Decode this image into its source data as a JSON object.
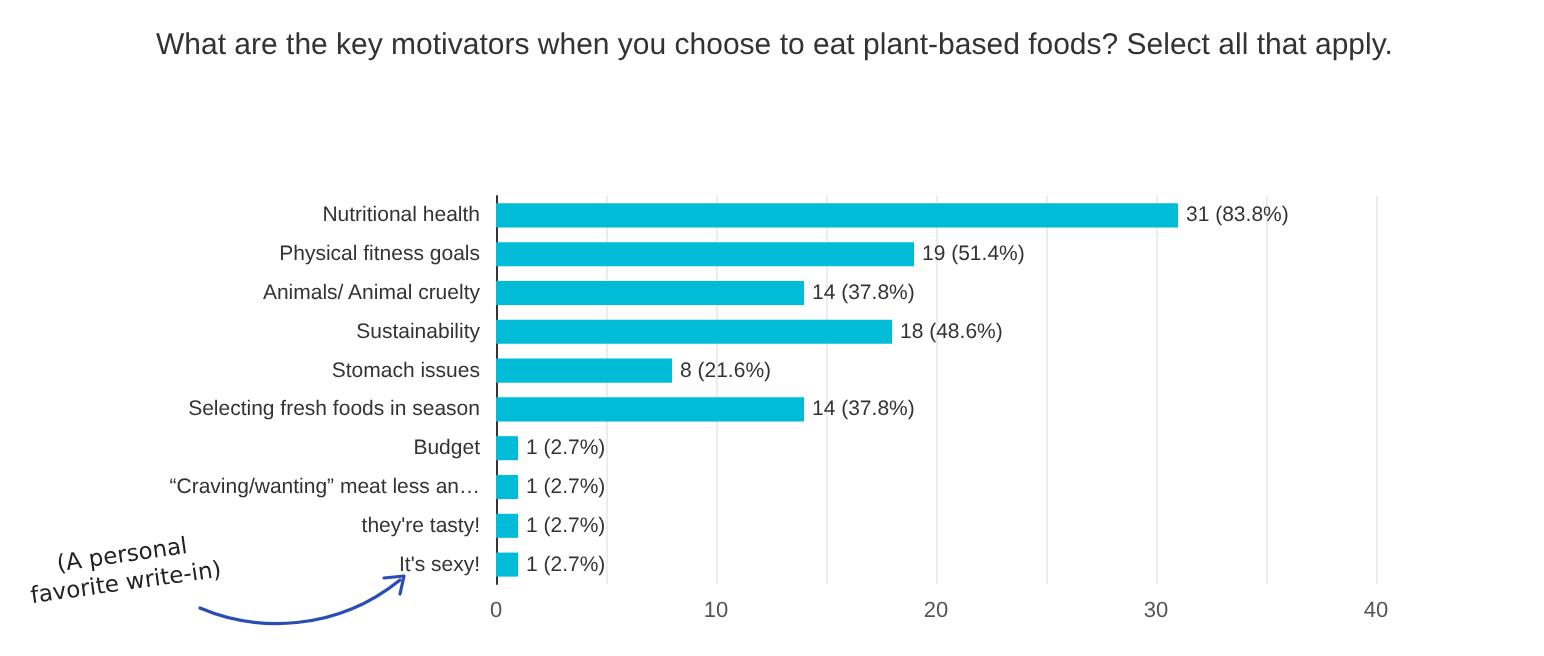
{
  "chart_data": {
    "type": "bar",
    "orientation": "horizontal",
    "title": "What are the key motivators when you choose to eat plant-based foods? Select all that apply.",
    "categories": [
      "Nutritional health",
      "Physical fitness goals",
      "Animals/ Animal cruelty",
      "Sustainability",
      "Stomach issues",
      "Selecting fresh foods in season",
      "Budget",
      "“Craving/wanting” meat less an…",
      "they're tasty!",
      "It's sexy!"
    ],
    "values": [
      31,
      19,
      14,
      18,
      8,
      14,
      1,
      1,
      1,
      1
    ],
    "value_labels": [
      "31 (83.8%)",
      "19 (51.4%)",
      "14 (37.8%)",
      "18 (48.6%)",
      "8 (21.6%)",
      "14 (37.8%)",
      "1 (2.7%)",
      "1 (2.7%)",
      "1 (2.7%)",
      "1 (2.7%)"
    ],
    "color": "#00bcd6",
    "xlim": [
      0,
      40
    ],
    "xticks": [
      0,
      {
        "value": 5,
        "label": null
      },
      10,
      {
        "value": 15,
        "label": null
      },
      20,
      {
        "value": 25,
        "label": null
      },
      30,
      {
        "value": 35,
        "label": null
      },
      40
    ],
    "grid": "x",
    "annotations": [
      "(A personal favorite write-in)"
    ]
  }
}
